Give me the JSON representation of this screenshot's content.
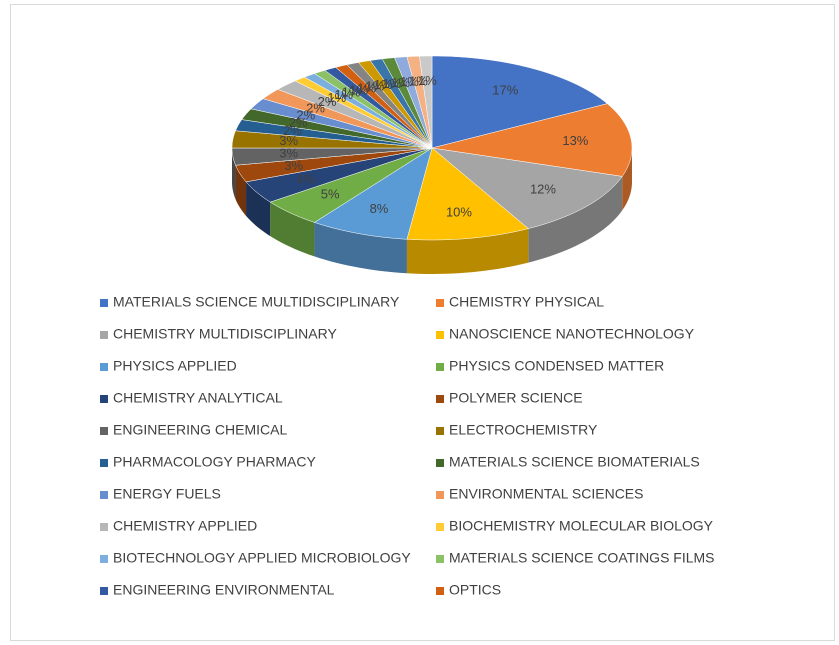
{
  "chart_data": {
    "type": "pie3d",
    "categories": [
      "MATERIALS SCIENCE MULTIDISCIPLINARY",
      "CHEMISTRY PHYSICAL",
      "CHEMISTRY MULTIDISCIPLINARY",
      "NANOSCIENCE NANOTECHNOLOGY",
      "PHYSICS APPLIED",
      "PHYSICS CONDENSED MATTER",
      "CHEMISTRY ANALYTICAL",
      "POLYMER SCIENCE",
      "ENGINEERING CHEMICAL",
      "ELECTROCHEMISTRY",
      "PHARMACOLOGY PHARMACY",
      "MATERIALS SCIENCE BIOMATERIALS",
      "ENERGY FUELS",
      "ENVIRONMENTAL SCIENCES",
      "CHEMISTRY APPLIED",
      "BIOCHEMISTRY MOLECULAR BIOLOGY",
      "BIOTECHNOLOGY APPLIED MICROBIOLOGY",
      "MATERIALS SCIENCE COATINGS FILMS",
      "ENGINEERING ENVIRONMENTAL",
      "OPTICS",
      null,
      null,
      null,
      null,
      null,
      null,
      null
    ],
    "values": [
      17,
      13,
      12,
      10,
      8,
      5,
      4,
      3,
      3,
      3,
      2,
      2,
      2,
      2,
      2,
      1,
      1,
      1,
      1,
      1,
      1,
      1,
      1,
      1,
      1,
      1,
      1
    ],
    "value_labels": [
      "17%",
      "13%",
      "12%",
      "10%",
      "8%",
      "5%",
      "4%",
      "3%",
      "3%",
      "3%",
      "2%",
      "2%",
      "2%",
      "2%",
      "2%",
      "1%",
      "1%",
      "1%",
      "1%",
      "1%",
      "1%",
      "1%",
      "1%",
      "1%",
      "1%",
      "1%",
      "1%"
    ],
    "colors": [
      "#4472c4",
      "#ed7d31",
      "#a5a5a5",
      "#ffc000",
      "#5b9bd5",
      "#70ad47",
      "#264478",
      "#9e480e",
      "#636363",
      "#997300",
      "#255e91",
      "#43682b",
      "#698ed0",
      "#f1975a",
      "#b7b7b7",
      "#ffcd33",
      "#7cafdd",
      "#8cc168",
      "#335aa1",
      "#d26012",
      "#848484",
      "#cc9a00",
      "#3a75aa",
      "#5a8a3a",
      "#8faadc",
      "#f4b183",
      "#c9c9c9"
    ],
    "legend": "bottom"
  }
}
